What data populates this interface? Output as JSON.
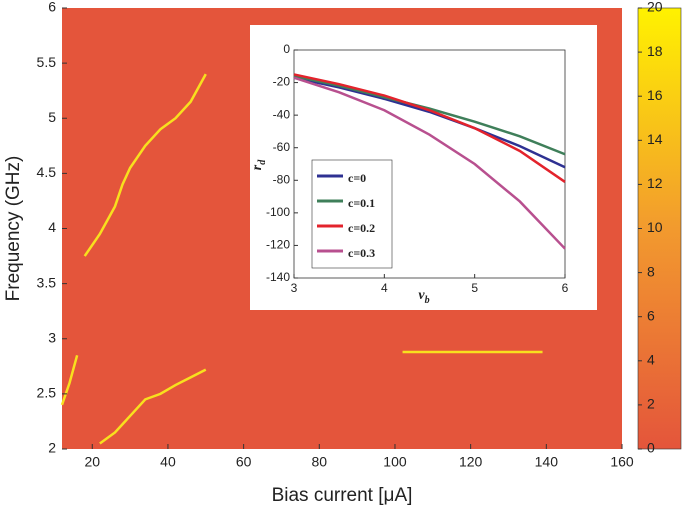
{
  "chart_data": [
    {
      "type": "heatmap",
      "xlabel": "Bias current [μA]",
      "ylabel": "Frequency (GHz)",
      "xlim": [
        12,
        160
      ],
      "xticks": [
        20,
        40,
        60,
        80,
        100,
        120,
        140,
        160
      ],
      "ylim": [
        2,
        6
      ],
      "yticks": [
        2,
        2.5,
        3,
        3.5,
        4,
        4.5,
        5,
        5.5,
        6
      ],
      "background": "#e4553b",
      "colormap": [
        "#e4553b",
        "#f29a2e",
        "#fff200"
      ],
      "clim": [
        0,
        20
      ],
      "cticks": [
        0,
        2,
        4,
        6,
        8,
        10,
        12,
        14,
        16,
        18,
        20
      ],
      "traces": [
        {
          "color": "#f8e01e",
          "x": [
            18,
            22,
            26,
            28,
            30,
            34,
            38,
            42,
            46,
            50
          ],
          "y": [
            3.75,
            3.95,
            4.2,
            4.4,
            4.55,
            4.75,
            4.9,
            5.0,
            5.15,
            5.4
          ]
        },
        {
          "color": "#f8e01e",
          "x": [
            22,
            26,
            30,
            34,
            38,
            42,
            46,
            50
          ],
          "y": [
            2.05,
            2.15,
            2.3,
            2.45,
            2.5,
            2.58,
            2.65,
            2.72
          ]
        },
        {
          "color": "#f8e01e",
          "x": [
            102,
            110,
            120,
            130,
            139
          ],
          "y": [
            2.88,
            2.88,
            2.88,
            2.88,
            2.88
          ]
        },
        {
          "color": "#f8e01e",
          "x": [
            12,
            14,
            16
          ],
          "y": [
            2.4,
            2.6,
            2.85
          ]
        }
      ]
    },
    {
      "type": "line",
      "xlabel": "v",
      "xlabel_sub": "b",
      "ylabel": "r",
      "ylabel_sub": "d",
      "xlim": [
        3,
        6
      ],
      "xticks": [
        3,
        4,
        5,
        6
      ],
      "ylim": [
        -140,
        0
      ],
      "yticks": [
        -140,
        -120,
        -100,
        -80,
        -60,
        -40,
        -20,
        0
      ],
      "x": [
        3,
        3.5,
        4,
        4.5,
        5,
        5.5,
        6
      ],
      "series": [
        {
          "name": "c=0",
          "color": "#2e3192",
          "values": [
            -17,
            -23,
            -30,
            -38,
            -48,
            -59,
            -72
          ]
        },
        {
          "name": "c=0.1",
          "color": "#3f7f5a",
          "values": [
            -16,
            -22,
            -29,
            -36,
            -44,
            -53,
            -64
          ]
        },
        {
          "name": "c=0.2",
          "color": "#e3232c",
          "values": [
            -15,
            -21,
            -28,
            -37,
            -48,
            -62,
            -81
          ]
        },
        {
          "name": "c=0.3",
          "color": "#b8508f",
          "values": [
            -17,
            -26,
            -37,
            -52,
            -70,
            -93,
            -122
          ]
        }
      ]
    }
  ]
}
